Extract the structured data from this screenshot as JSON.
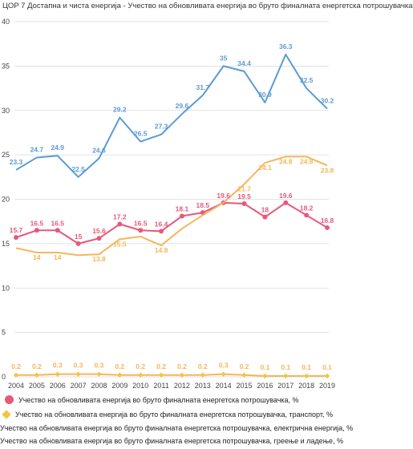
{
  "chart_data": {
    "type": "line",
    "title": "ЦОР 7 Достапна и чиста енергија - Учество на обновливата енергија во бруто финалната енергетска потрошувачка",
    "xlabel": "",
    "ylabel": "",
    "ylim": [
      0,
      40
    ],
    "yticks": [
      0,
      5,
      10,
      15,
      20,
      25,
      30,
      35,
      40
    ],
    "grid": true,
    "legend_position": "bottom",
    "categories": [
      "2004",
      "2005",
      "2006",
      "2007",
      "2008",
      "2009",
      "2010",
      "2011",
      "2012",
      "2013",
      "2014",
      "2015",
      "2016",
      "2017",
      "2018",
      "2019"
    ],
    "series": [
      {
        "name": "Учество на обновливата   енергија во бруто финалната енергетска потрошувачка, %",
        "color": "#e8587a",
        "marker": "circle",
        "values": [
          15.7,
          16.5,
          16.5,
          15,
          15.6,
          17.2,
          16.5,
          16.4,
          18.1,
          18.5,
          19.6,
          19.5,
          18,
          19.6,
          18.2,
          16.8
        ],
        "labels": [
          "15.7",
          "16.5",
          "16.5",
          "15",
          "15.6",
          "17.2",
          "16.5",
          "16.4",
          "18.1",
          "18.5",
          "19.6",
          "19.5",
          "18",
          "19.6",
          "18.2",
          "16.8"
        ]
      },
      {
        "name": "Учество на обновливата   енергија во бруто финалната енергетска потрошувачка, транспорт, %",
        "color": "#f6b55a",
        "marker": "diamond",
        "values": [
          0.2,
          0.2,
          0.3,
          0.3,
          0.3,
          0.2,
          0.2,
          0.2,
          0.2,
          0.2,
          0.3,
          0.2,
          0.1,
          0.1,
          0.1,
          0.1
        ],
        "labels": [
          "0.2",
          "0.2",
          "0.3",
          "0.3",
          "0.3",
          "0.2",
          "0.2",
          "0.2",
          "0.2",
          "0.2",
          "0.3",
          "0.2",
          "0.1",
          "0.1",
          "0.1",
          "0.1"
        ]
      },
      {
        "name": "Учество на обновливата   енергија во бруто финалната енергетска потрошувачка, електрична енергија, %",
        "color": "#5b9bd5",
        "marker": "none",
        "values": [
          23.3,
          24.7,
          24.9,
          22.5,
          24.6,
          29.2,
          26.5,
          27.3,
          29.6,
          31.7,
          35,
          34.4,
          30.9,
          36.3,
          32.5,
          30.2
        ],
        "labels": [
          "23.3",
          "24.7",
          "24.9",
          "22.5",
          "24.6",
          "29.2",
          "26.5",
          "27.3",
          "29.6",
          "31.7",
          "35",
          "34.4",
          "30.9",
          "36.3",
          "32.5",
          "30.2"
        ]
      },
      {
        "name": "Учество на обновливата   енергија во бруто финалната енергетска потрошувачка, греење и ладење, %",
        "color": "#f6b55a",
        "marker": "none",
        "values": [
          14.5,
          14,
          14,
          13.7,
          13.8,
          15.5,
          15.8,
          14.8,
          16.7,
          18.2,
          19.6,
          21.7,
          24.1,
          24.8,
          24.8,
          23.8
        ],
        "labels": [
          "",
          "14",
          "14",
          "",
          "13.8",
          "15.5",
          "",
          "14.8",
          "",
          "",
          "",
          "21.7",
          "24.1",
          "24.8",
          "24.8",
          "23.8"
        ]
      }
    ]
  }
}
